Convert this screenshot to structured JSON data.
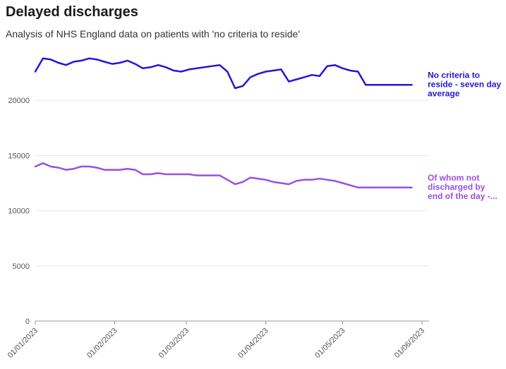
{
  "chart_data": {
    "type": "line",
    "title": "Delayed discharges",
    "subtitle": "Analysis of NHS England data on patients with 'no criteria to reside'",
    "xlabel": "",
    "ylabel": "",
    "ylim": [
      0,
      25000
    ],
    "x_ticks": [
      "01/01/2023",
      "01/02/2023",
      "01/03/2023",
      "01/04/2023",
      "01/05/2023",
      "01/06/2023"
    ],
    "y_ticks": [
      0,
      5000,
      10000,
      15000,
      20000
    ],
    "grid": true,
    "x": [
      0,
      3,
      6,
      9,
      12,
      15,
      18,
      21,
      24,
      27,
      30,
      33,
      36,
      39,
      42,
      45,
      48,
      51,
      54,
      57,
      60,
      63,
      66,
      69,
      72,
      75,
      78,
      81,
      84,
      87,
      90,
      93,
      96,
      99,
      102,
      105,
      108,
      111,
      114,
      117,
      120,
      123,
      126,
      129,
      132,
      135,
      138,
      141,
      144,
      147,
      150
    ],
    "x_unit": "days since 01/01/2023",
    "series": [
      {
        "name": "No criteria to reside - seven day average",
        "label_lines": [
          "No criteria to",
          "reside - seven day",
          "average"
        ],
        "color": "#2416d6",
        "values": [
          22600,
          23800,
          23700,
          23400,
          23200,
          23500,
          23600,
          23800,
          23700,
          23500,
          23300,
          23400,
          23600,
          23300,
          22900,
          23000,
          23200,
          23000,
          22700,
          22600,
          22800,
          22900,
          23000,
          23100,
          23200,
          22600,
          21100,
          21300,
          22100,
          22400,
          22600,
          22700,
          22800,
          21700,
          21900,
          22100,
          22300,
          22200,
          23100,
          23200,
          22900,
          22700,
          22600,
          21400,
          21400,
          21400,
          21400,
          21400,
          21400,
          21400,
          21400
        ]
      },
      {
        "name": "Of whom not discharged by end of the day -...",
        "label_lines": [
          "Of whom not",
          "discharged by",
          "end of the day -..."
        ],
        "color": "#9b4fe0",
        "values": [
          14000,
          14300,
          14000,
          13900,
          13700,
          13800,
          14000,
          14000,
          13900,
          13700,
          13700,
          13700,
          13800,
          13700,
          13300,
          13300,
          13400,
          13300,
          13300,
          13300,
          13300,
          13200,
          13200,
          13200,
          13200,
          12800,
          12400,
          12600,
          13000,
          12900,
          12800,
          12600,
          12500,
          12400,
          12700,
          12800,
          12800,
          12900,
          12800,
          12700,
          12500,
          12300,
          12100,
          12100,
          12100,
          12100,
          12100,
          12100,
          12100,
          12100,
          12100
        ]
      }
    ]
  }
}
